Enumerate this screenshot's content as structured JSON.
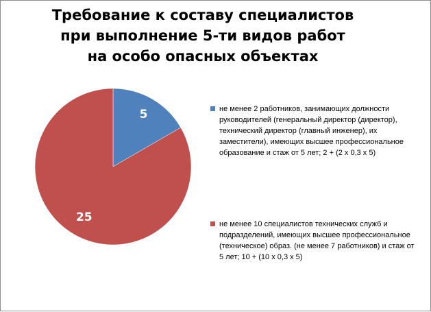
{
  "chart_data": {
    "type": "pie",
    "title": "Требование к составу специалистов при выполнение 5-ти видов работ на особо опасных объектах",
    "slices": [
      {
        "label": "не менее 2  работников, занимающих должности руководителей (генеральный  директор (директор), технический директор  (главный инженер), их заместители), имеющих высшее профессиональное образование и стаж от 5 лет;  2 + (2 x 0,3 x 5)",
        "value": 5,
        "color": "#4f81bd"
      },
      {
        "label": "не менее 10 специалистов технических служб и подразделений, имеющих высшее профессиональное (техническое) образ. (не  менее 7 работников) и стаж от 5 лет;   10 + (10 x 0,3 x 5)",
        "value": 25,
        "color": "#c0504d"
      }
    ],
    "legend_position": "right"
  }
}
